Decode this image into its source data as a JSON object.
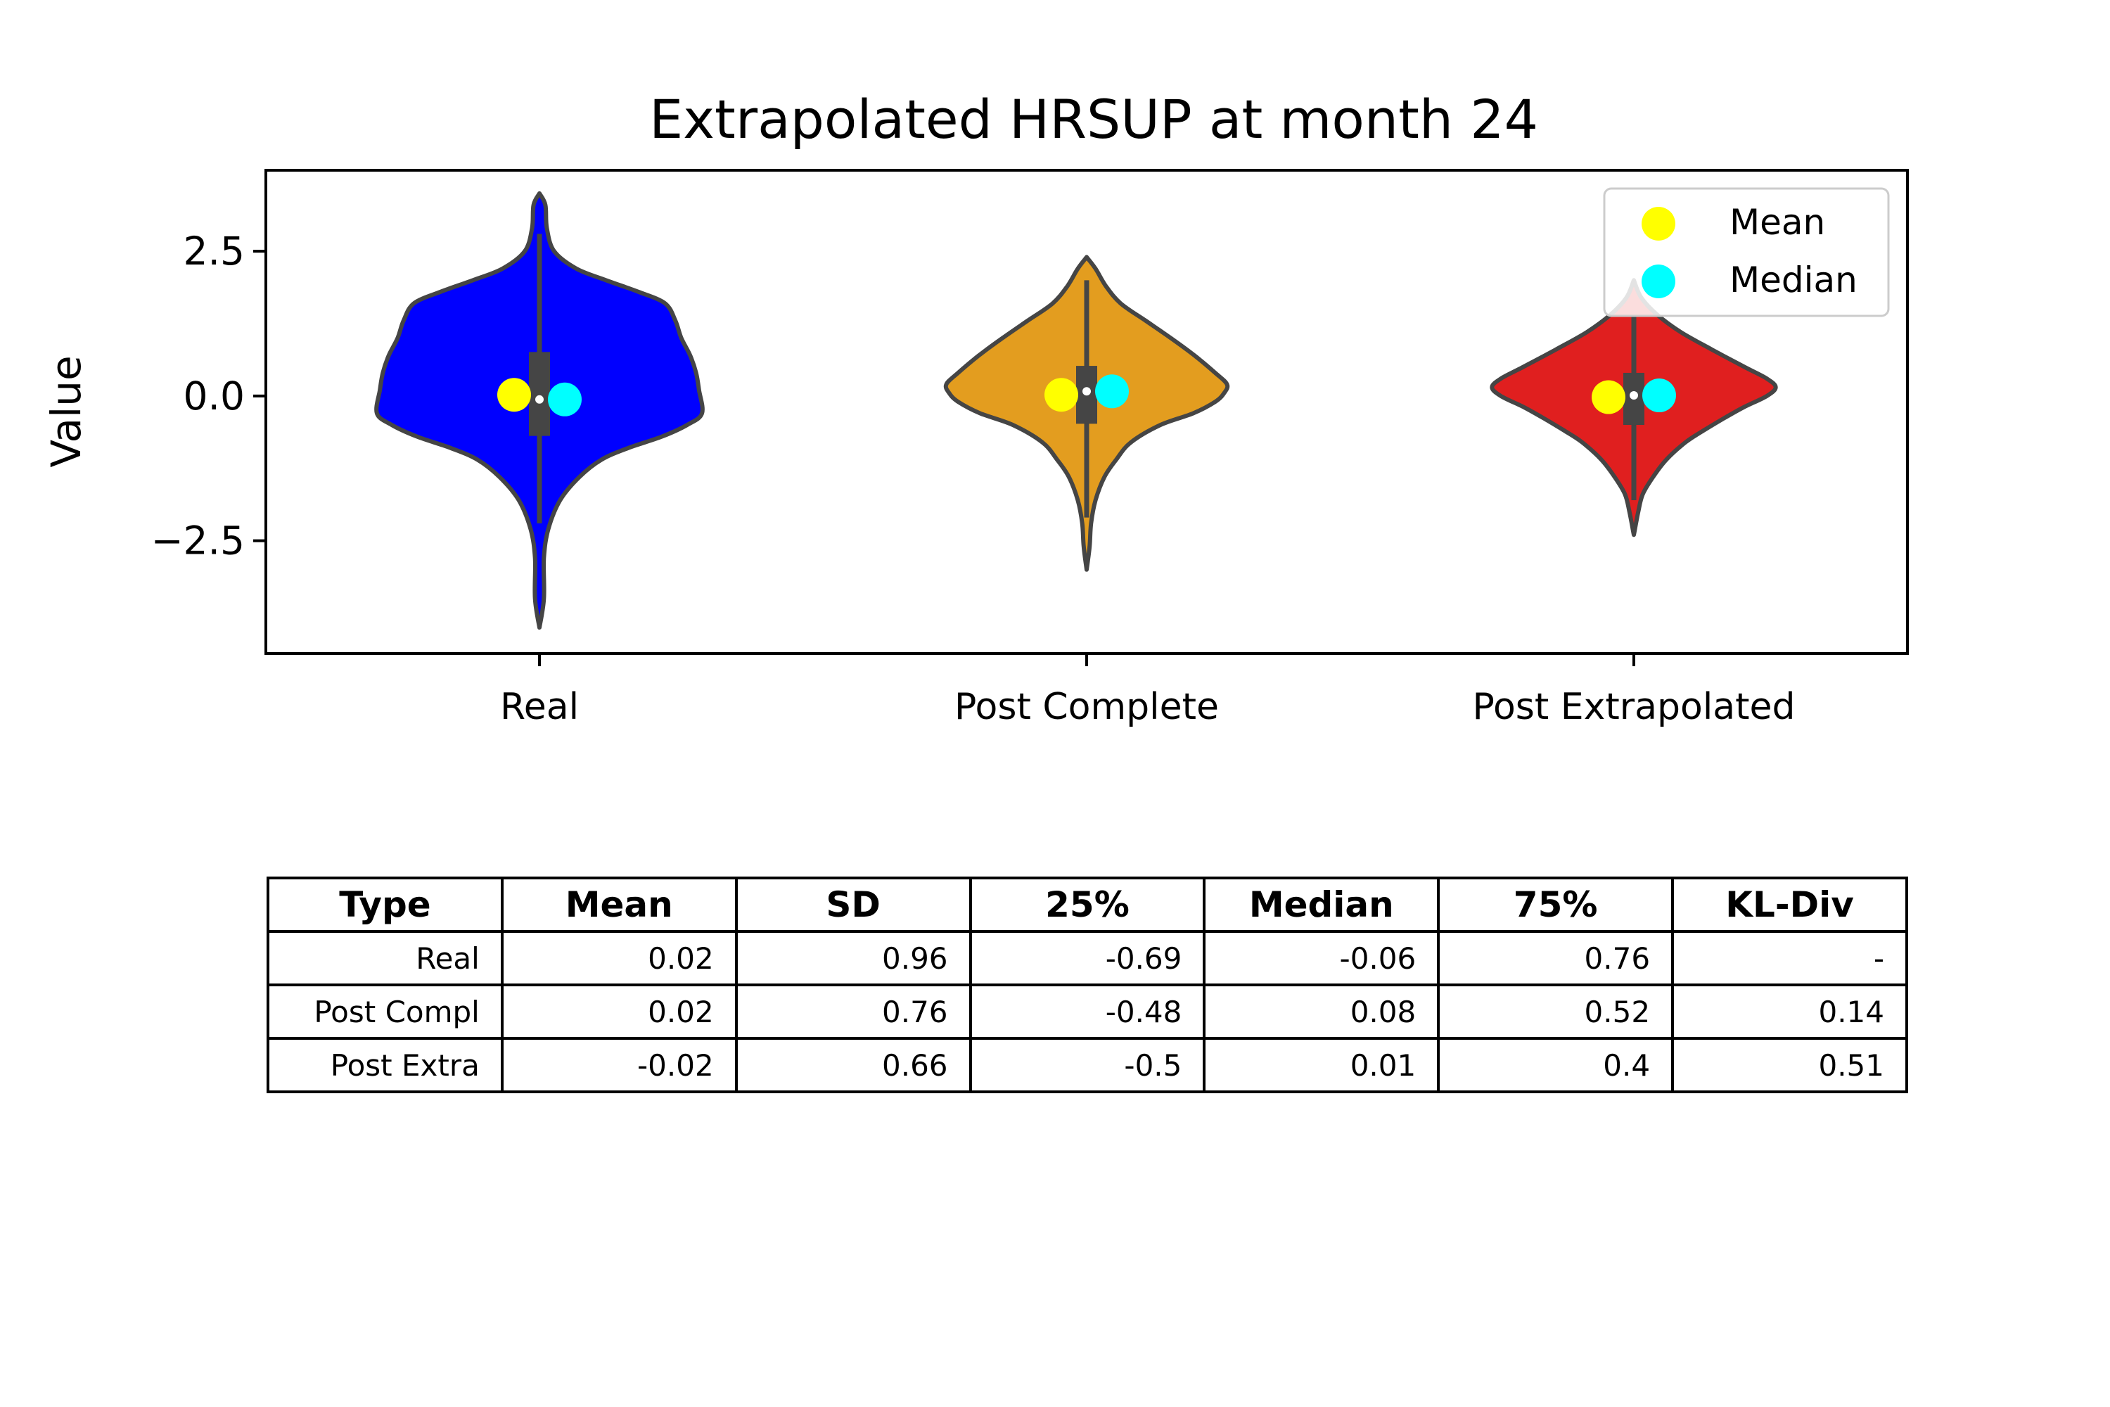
{
  "chart_data": {
    "type": "violin",
    "title": "Extrapolated HRSUP at month 24",
    "xlabel": "",
    "ylabel": "Value",
    "ylim": [
      -4.45,
      3.9
    ],
    "yticks": [
      2.5,
      0.0,
      -2.5
    ],
    "ytick_labels": [
      "2.5",
      "0.0",
      "−2.5"
    ],
    "categories": [
      "Real",
      "Post Complete",
      "Post Extrapolated"
    ],
    "legend": {
      "placement": "top-right",
      "entries": [
        {
          "label": "Mean",
          "color": "#ffff00"
        },
        {
          "label": "Median",
          "color": "#00ffff"
        }
      ]
    },
    "series": [
      {
        "category": "Real",
        "color": "#0000ff",
        "mean": 0.02,
        "median": -0.06,
        "q1": -0.69,
        "q3": 0.76,
        "whisker_low": -2.2,
        "whisker_high": 2.8,
        "min": -4.0,
        "max": 3.5,
        "profile": [
          [
            3.5,
            0.0
          ],
          [
            3.3,
            0.04
          ],
          [
            2.9,
            0.05
          ],
          [
            2.5,
            0.1
          ],
          [
            2.2,
            0.25
          ],
          [
            2.0,
            0.45
          ],
          [
            1.8,
            0.67
          ],
          [
            1.6,
            0.85
          ],
          [
            1.3,
            0.92
          ],
          [
            1.0,
            0.96
          ],
          [
            0.7,
            1.02
          ],
          [
            0.4,
            1.06
          ],
          [
            0.1,
            1.08
          ],
          [
            -0.3,
            1.1
          ],
          [
            -0.5,
            1.0
          ],
          [
            -0.7,
            0.83
          ],
          [
            -0.9,
            0.6
          ],
          [
            -1.1,
            0.42
          ],
          [
            -1.4,
            0.27
          ],
          [
            -1.8,
            0.14
          ],
          [
            -2.3,
            0.06
          ],
          [
            -2.8,
            0.03
          ],
          [
            -3.5,
            0.03
          ],
          [
            -4.0,
            0.0
          ]
        ]
      },
      {
        "category": "Post Complete",
        "color": "#e39d1f",
        "mean": 0.02,
        "median": 0.08,
        "q1": -0.48,
        "q3": 0.52,
        "whisker_low": -2.1,
        "whisker_high": 2.0,
        "min": -3.0,
        "max": 2.4,
        "profile": [
          [
            2.4,
            0.0
          ],
          [
            2.2,
            0.06
          ],
          [
            1.9,
            0.13
          ],
          [
            1.6,
            0.23
          ],
          [
            1.3,
            0.4
          ],
          [
            1.0,
            0.57
          ],
          [
            0.7,
            0.73
          ],
          [
            0.4,
            0.87
          ],
          [
            0.2,
            0.95
          ],
          [
            0.05,
            0.93
          ],
          [
            -0.1,
            0.87
          ],
          [
            -0.3,
            0.72
          ],
          [
            -0.5,
            0.5
          ],
          [
            -0.8,
            0.3
          ],
          [
            -1.1,
            0.2
          ],
          [
            -1.4,
            0.12
          ],
          [
            -1.8,
            0.06
          ],
          [
            -2.2,
            0.03
          ],
          [
            -2.6,
            0.02
          ],
          [
            -3.0,
            0.0
          ]
        ]
      },
      {
        "category": "Post Extrapolated",
        "color": "#e01f1f",
        "mean": -0.02,
        "median": 0.01,
        "q1": -0.5,
        "q3": 0.4,
        "whisker_low": -1.8,
        "whisker_high": 1.4,
        "min": -2.4,
        "max": 2.0,
        "profile": [
          [
            2.0,
            0.0
          ],
          [
            1.7,
            0.05
          ],
          [
            1.4,
            0.16
          ],
          [
            1.1,
            0.32
          ],
          [
            0.8,
            0.53
          ],
          [
            0.5,
            0.75
          ],
          [
            0.3,
            0.9
          ],
          [
            0.15,
            0.96
          ],
          [
            0.0,
            0.9
          ],
          [
            -0.2,
            0.74
          ],
          [
            -0.4,
            0.6
          ],
          [
            -0.6,
            0.47
          ],
          [
            -0.8,
            0.35
          ],
          [
            -1.1,
            0.22
          ],
          [
            -1.4,
            0.13
          ],
          [
            -1.7,
            0.06
          ],
          [
            -2.0,
            0.03
          ],
          [
            -2.4,
            0.0
          ]
        ]
      }
    ]
  },
  "table": {
    "headers": [
      "Type",
      "Mean",
      "SD",
      "25%",
      "Median",
      "75%",
      "KL-Div"
    ],
    "rows": [
      [
        "Real",
        "0.02",
        "0.96",
        "-0.69",
        "-0.06",
        "0.76",
        "-"
      ],
      [
        "Post Compl",
        "0.02",
        "0.76",
        "-0.48",
        "0.08",
        "0.52",
        "0.14"
      ],
      [
        "Post Extra",
        "-0.02",
        "0.66",
        "-0.5",
        "0.01",
        "0.4",
        "0.51"
      ]
    ]
  }
}
